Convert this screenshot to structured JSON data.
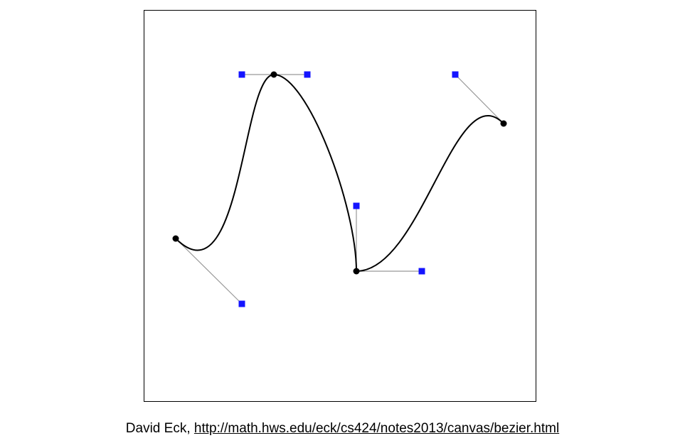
{
  "caption": {
    "author": "David Eck, ",
    "url": "http://math.hws.edu/eck/cs424/notes2013/canvas/bezier.html"
  },
  "colors": {
    "curve": "#000000",
    "anchor_point": "#000000",
    "control_point": "#1414ff",
    "handle_line": "#999999",
    "frame_border": "#000000"
  },
  "icons": {
    "anchor": "filled-circle",
    "control": "filled-square"
  }
}
